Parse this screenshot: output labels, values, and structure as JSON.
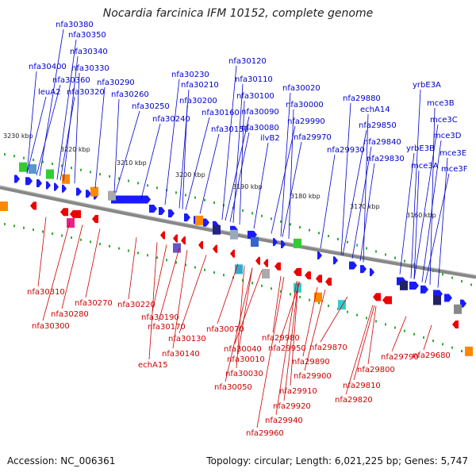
{
  "title": "Nocardia farcinica IFM 10152, complete genome",
  "footer": {
    "accession": "Accession: NC_006361",
    "summary": "Topology: circular; Length: 6,021,225 bp; Genes: 5,747"
  },
  "colors": {
    "forward": "#0000cc",
    "reverse": "#cc0000",
    "backbone": "#888888",
    "tick": "#33aa33"
  },
  "scale_labels": [
    "3230 kbp",
    "3220 kbp",
    "3210 kbp",
    "3200 kbp",
    "3190 kbp",
    "3180 kbp",
    "3170 kbp",
    "3160 kbp"
  ],
  "forward_labels": [
    "nfa30380",
    "nfa30350",
    "nfa30340",
    "nfa30400",
    "nfa30330",
    "nfa30360",
    "leuA2",
    "nfa30320",
    "nfa30290",
    "nfa30260",
    "nfa30250",
    "nfa30240",
    "nfa30230",
    "nfa30210",
    "nfa30200",
    "nfa30160",
    "nfa30150",
    "nfa30120",
    "nfa30110",
    "nfa30100",
    "nfa30090",
    "nfa30080",
    "ilvB2",
    "nfa30020",
    "nfa30000",
    "nfa29990",
    "nfa29970",
    "nfa29930",
    "nfa29880",
    "echA14",
    "nfa29850",
    "nfa29840",
    "nfa29830",
    "yrbE3A",
    "mce3B",
    "mce3C",
    "mce3D",
    "yrbE3B",
    "mce3E",
    "mce3A",
    "mce3F"
  ],
  "reverse_labels": [
    "nfa30310",
    "nfa30270",
    "nfa30280",
    "nfa30300",
    "nfa30220",
    "nfa30190",
    "nfa30170",
    "nfa30130",
    "echA15",
    "nfa30140",
    "nfa30070",
    "nfa30040",
    "nfa29980",
    "nfa30010",
    "nfa29950",
    "nfa29870",
    "nfa30030",
    "nfa29890",
    "nfa29900",
    "nfa30050",
    "nfa29910",
    "nfa29920",
    "nfa29940",
    "nfa29960",
    "nfa29800",
    "nfa29790",
    "nfa29810",
    "nfa29820",
    "nfa29680"
  ]
}
